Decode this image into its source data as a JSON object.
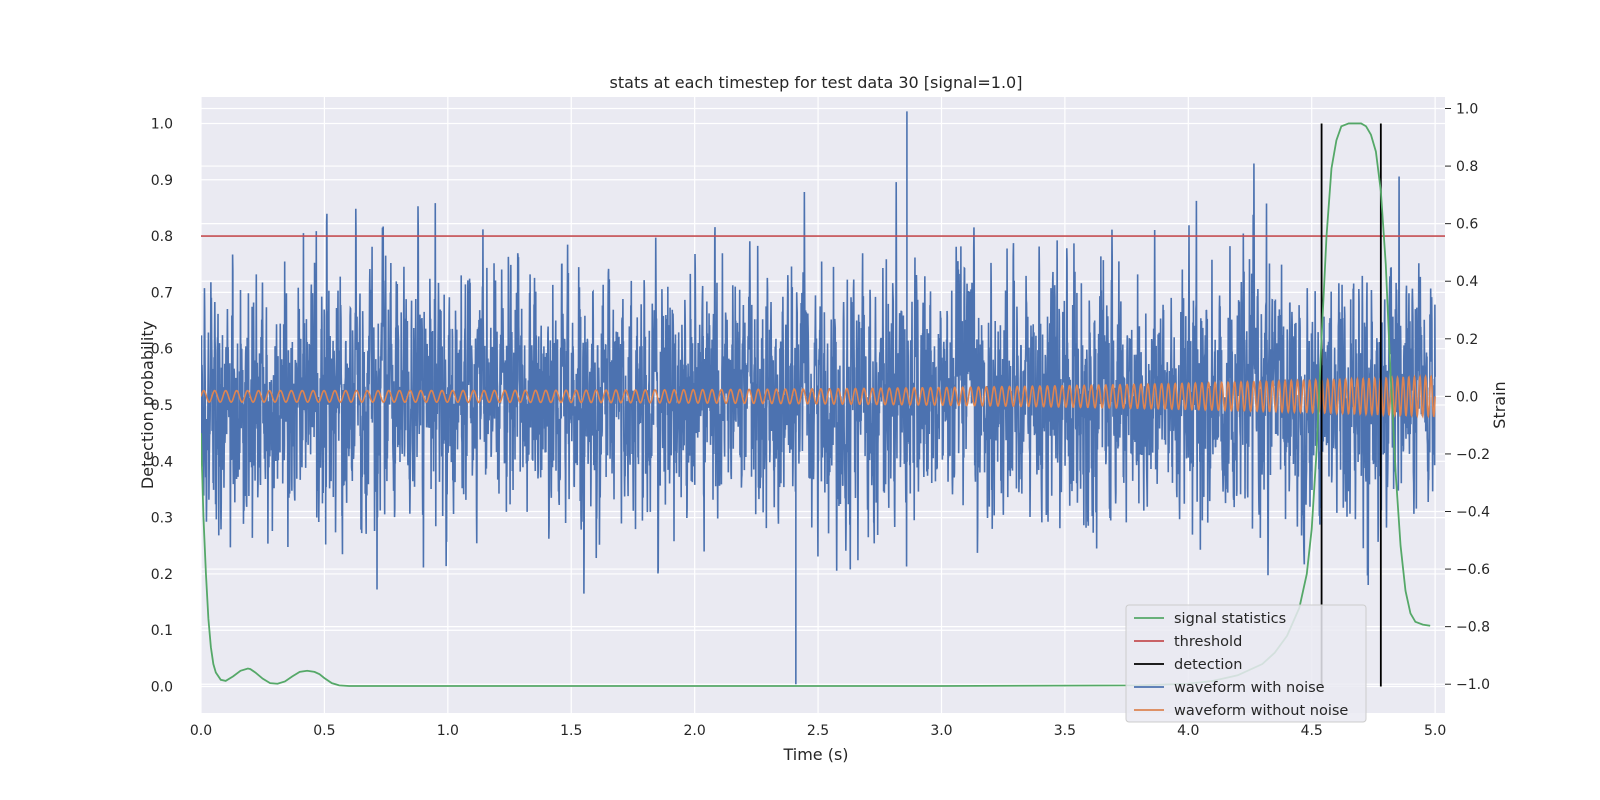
{
  "chart_data": {
    "type": "line",
    "title": "stats at each timestep for test data 30 [signal=1.0]",
    "xlabel": "Time (s)",
    "ylabel": "Detection probability",
    "y2label": "Strain",
    "xlim": [
      0.0,
      5.04
    ],
    "ylim": [
      -0.047,
      1.047
    ],
    "y2lim": [
      -1.1,
      1.04
    ],
    "xticks": [
      "0.0",
      "0.5",
      "1.0",
      "1.5",
      "2.0",
      "2.5",
      "3.0",
      "3.5",
      "4.0",
      "4.5",
      "5.0"
    ],
    "yticks": [
      "0.0",
      "0.1",
      "0.2",
      "0.3",
      "0.4",
      "0.5",
      "0.6",
      "0.7",
      "0.8",
      "0.9",
      "1.0"
    ],
    "y2ticks": [
      "−1.0",
      "−0.8",
      "−0.6",
      "−0.4",
      "−0.2",
      "0.0",
      "0.2",
      "0.4",
      "0.6",
      "0.8",
      "1.0"
    ],
    "grid": true,
    "legend_position": "lower-right",
    "colors": {
      "background": "#eaeaf2",
      "grid": "#ffffff",
      "signal_statistics": "#55a868",
      "threshold": "#c44e52",
      "detection": "#000000",
      "waveform_with_noise": "#4c72b0",
      "waveform_without_noise": "#dd8452"
    },
    "series": [
      {
        "name": "signal statistics",
        "axis": "left",
        "x": [
          0.0,
          0.01,
          0.02,
          0.03,
          0.04,
          0.05,
          0.06,
          0.08,
          0.1,
          0.13,
          0.16,
          0.19,
          0.2,
          0.22,
          0.25,
          0.28,
          0.31,
          0.34,
          0.37,
          0.4,
          0.43,
          0.46,
          0.48,
          0.5,
          0.53,
          0.56,
          0.6,
          0.8,
          1.0,
          2.0,
          3.0,
          3.8,
          4.0,
          4.1,
          4.2,
          4.3,
          4.35,
          4.4,
          4.45,
          4.48,
          4.5,
          4.52,
          4.54,
          4.56,
          4.58,
          4.6,
          4.62,
          4.65,
          4.7,
          4.72,
          4.74,
          4.76,
          4.78,
          4.8,
          4.82,
          4.84,
          4.86,
          4.88,
          4.9,
          4.92,
          4.95,
          4.98
        ],
        "y": [
          0.45,
          0.3,
          0.2,
          0.12,
          0.07,
          0.04,
          0.025,
          0.012,
          0.01,
          0.018,
          0.028,
          0.032,
          0.031,
          0.025,
          0.014,
          0.006,
          0.005,
          0.009,
          0.018,
          0.026,
          0.028,
          0.026,
          0.022,
          0.015,
          0.006,
          0.002,
          0.001,
          0.001,
          0.001,
          0.001,
          0.001,
          0.002,
          0.005,
          0.01,
          0.02,
          0.04,
          0.06,
          0.09,
          0.14,
          0.2,
          0.28,
          0.42,
          0.62,
          0.8,
          0.92,
          0.97,
          0.995,
          1.0,
          1.0,
          0.995,
          0.98,
          0.95,
          0.88,
          0.75,
          0.55,
          0.38,
          0.25,
          0.17,
          0.13,
          0.115,
          0.11,
          0.108
        ]
      },
      {
        "name": "threshold",
        "axis": "left",
        "x": [
          0.0,
          5.04
        ],
        "y": [
          0.8,
          0.8
        ]
      },
      {
        "name": "detection",
        "axis": "left",
        "x": [
          4.54,
          4.78
        ],
        "y": [
          1.0,
          1.0
        ]
      },
      {
        "name": "waveform with noise",
        "axis": "right",
        "x_range": [
          0.0,
          5.0
        ],
        "points": 5000,
        "typical_range": [
          -0.4,
          0.4
        ],
        "extremes": [
          -1.0,
          0.99
        ],
        "noise_sigma": 0.18
      },
      {
        "name": "waveform without noise",
        "axis": "right",
        "x_range": [
          0.0,
          5.0
        ],
        "amplitude_start": 0.02,
        "amplitude_end": 0.07,
        "cycles": 150
      }
    ],
    "legend": [
      "signal statistics",
      "threshold",
      "detection",
      "waveform with noise",
      "waveform without noise"
    ]
  }
}
